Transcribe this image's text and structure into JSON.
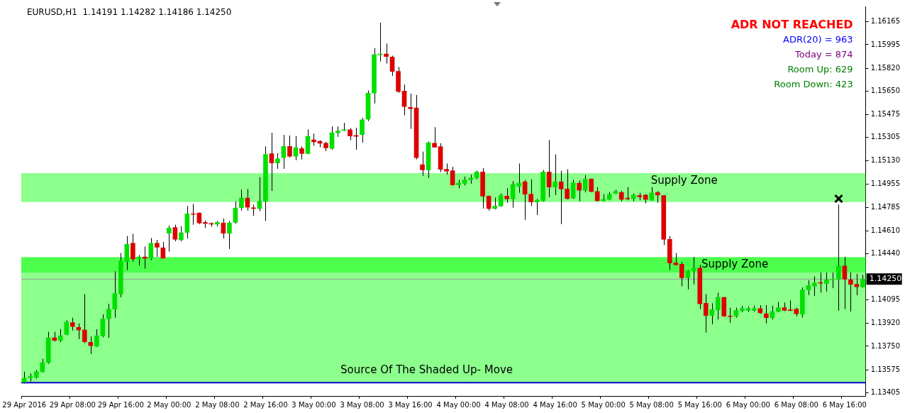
{
  "chart_data": {
    "type": "candlestick",
    "title": "EURUSD,H1  1.14191 1.14282 1.14186 1.14250",
    "annotations": [
      "ADR NOT REACHED",
      "ADR(20) = 963",
      "Today = 874",
      "Room Up: 629",
      "Room Down: 423"
    ],
    "categories": [
      "29 Apr 2016",
      null,
      null,
      null,
      null,
      null,
      null,
      null,
      "29 Apr 08:00",
      null,
      null,
      null,
      null,
      null,
      null,
      null,
      "29 Apr 16:00",
      null,
      null,
      null,
      null,
      null,
      null,
      null,
      "2 May 00:00",
      null,
      null,
      null,
      null,
      null,
      null,
      null,
      "2 May 08:00",
      null,
      null,
      null,
      null,
      null,
      null,
      null,
      "2 May 16:00",
      null,
      null,
      null,
      null,
      null,
      null,
      null,
      "3 May 00:00",
      null,
      null,
      null,
      null,
      null,
      null,
      null,
      "3 May 08:00",
      null,
      null,
      null,
      null,
      null,
      null,
      null,
      "3 May 16:00",
      null,
      null,
      null,
      null,
      null,
      null,
      null,
      "4 May 00:00",
      null,
      null,
      null,
      null,
      null,
      null,
      null,
      "4 May 08:00",
      null,
      null,
      null,
      null,
      null,
      null,
      null,
      "4 May 16:00",
      null,
      null,
      null,
      null,
      null,
      null,
      null,
      "5 May 00:00",
      null,
      null,
      null,
      null,
      null,
      null,
      null,
      "5 May 08:00",
      null,
      null,
      null,
      null,
      null,
      null,
      null,
      "5 May 16:00",
      null,
      null,
      null,
      null,
      null,
      null,
      null,
      "6 May 00:00",
      null,
      null,
      null,
      null,
      null,
      null,
      null,
      "6 May 08:00",
      null,
      null,
      null,
      null,
      null,
      null,
      null,
      "6 May 16:00",
      null,
      null,
      null
    ],
    "ohlc": [
      [
        1.13483,
        1.1356,
        1.13473,
        1.13512
      ],
      [
        1.13516,
        1.13547,
        1.13489,
        1.13527
      ],
      [
        1.13518,
        1.13574,
        1.13508,
        1.1356
      ],
      [
        1.1356,
        1.13657,
        1.13555,
        1.13628
      ],
      [
        1.13628,
        1.13857,
        1.13619,
        1.13813
      ],
      [
        1.13813,
        1.13857,
        1.13787,
        1.13793
      ],
      [
        1.13793,
        1.13877,
        1.1378,
        1.13828
      ],
      [
        1.13838,
        1.13944,
        1.13832,
        1.1393
      ],
      [
        1.13926,
        1.13963,
        1.13866,
        1.13897
      ],
      [
        1.13891,
        1.1392,
        1.13803,
        1.13871
      ],
      [
        1.13871,
        1.14138,
        1.13774,
        1.13784
      ],
      [
        1.1378,
        1.13823,
        1.13692,
        1.13754
      ],
      [
        1.1375,
        1.13877,
        1.13745,
        1.13828
      ],
      [
        1.13828,
        1.13988,
        1.13817,
        1.13953
      ],
      [
        1.13955,
        1.14066,
        1.13813,
        1.14027
      ],
      [
        1.14027,
        1.14308,
        1.13963,
        1.14143
      ],
      [
        1.14139,
        1.14444,
        1.14114,
        1.14386
      ],
      [
        1.1438,
        1.14571,
        1.14318,
        1.14509
      ],
      [
        1.14517,
        1.14587,
        1.1438,
        1.144
      ],
      [
        1.14402,
        1.14429,
        1.14351,
        1.14415
      ],
      [
        1.14415,
        1.14493,
        1.14328,
        1.14405
      ],
      [
        1.14405,
        1.14556,
        1.1439,
        1.14517
      ],
      [
        1.14517,
        1.14542,
        1.14415,
        1.14487
      ],
      [
        1.14483,
        1.14527,
        1.14405,
        1.14405
      ],
      [
        1.14591,
        1.14649,
        1.14454,
        1.1463
      ],
      [
        1.14634,
        1.14655,
        1.14532,
        1.14546
      ],
      [
        1.14542,
        1.14644,
        1.14532,
        1.14595
      ],
      [
        1.14597,
        1.14794,
        1.14552,
        1.14736
      ],
      [
        1.14736,
        1.1481,
        1.14655,
        1.14732
      ],
      [
        1.14742,
        1.14746,
        1.14659,
        1.14668
      ],
      [
        1.14672,
        1.14687,
        1.1463,
        1.14664
      ],
      [
        1.14664,
        1.14672,
        1.1464,
        1.14659
      ],
      [
        1.14659,
        1.14682,
        1.1464,
        1.14672
      ],
      [
        1.14668,
        1.14701,
        1.14552,
        1.14591
      ],
      [
        1.14591,
        1.14682,
        1.14474,
        1.14668
      ],
      [
        1.14672,
        1.14829,
        1.14662,
        1.14779
      ],
      [
        1.14781,
        1.14917,
        1.1476,
        1.14853
      ],
      [
        1.14853,
        1.14921,
        1.1476,
        1.14785
      ],
      [
        1.14781,
        1.14804,
        1.14721,
        1.14775
      ],
      [
        1.14775,
        1.15009,
        1.14756,
        1.14829
      ],
      [
        1.14829,
        1.15238,
        1.14682,
        1.15178
      ],
      [
        1.15184,
        1.15339,
        1.14906,
        1.15115
      ],
      [
        1.15115,
        1.15187,
        1.15071,
        1.15145
      ],
      [
        1.15154,
        1.15323,
        1.15071,
        1.15238
      ],
      [
        1.15238,
        1.15319,
        1.15154,
        1.15164
      ],
      [
        1.15164,
        1.15315,
        1.15135,
        1.15228
      ],
      [
        1.15222,
        1.15238,
        1.15141,
        1.15184
      ],
      [
        1.15184,
        1.15364,
        1.1518,
        1.15313
      ],
      [
        1.15286,
        1.15333,
        1.15242,
        1.15271
      ],
      [
        1.15276,
        1.15284,
        1.15232,
        1.15261
      ],
      [
        1.15261,
        1.15271,
        1.15203,
        1.15226
      ],
      [
        1.15222,
        1.15387,
        1.15213,
        1.15339
      ],
      [
        1.15339,
        1.15387,
        1.15309,
        1.15352
      ],
      [
        1.15356,
        1.15413,
        1.15352,
        1.15362
      ],
      [
        1.15362,
        1.15374,
        1.15284,
        1.15315
      ],
      [
        1.15319,
        1.15377,
        1.15213,
        1.15313
      ],
      [
        1.15325,
        1.1545,
        1.15265,
        1.15436
      ],
      [
        1.1544,
        1.15654,
        1.15426,
        1.15634
      ],
      [
        1.15634,
        1.1597,
        1.15557,
        1.15922
      ],
      [
        1.1592,
        1.16159,
        1.15869,
        1.15926
      ],
      [
        1.15926,
        1.16003,
        1.15854,
        1.15907
      ],
      [
        1.15903,
        1.15913,
        1.15763,
        1.15796
      ],
      [
        1.15796,
        1.15829,
        1.15636,
        1.15646
      ],
      [
        1.1565,
        1.15698,
        1.15469,
        1.15534
      ],
      [
        1.15528,
        1.15631,
        1.15368,
        1.15518
      ],
      [
        1.15524,
        1.15621,
        1.15141,
        1.15154
      ],
      [
        1.15102,
        1.15199,
        1.15019,
        1.15063
      ],
      [
        1.15061,
        1.15275,
        1.15003,
        1.15265
      ],
      [
        1.15261,
        1.15381,
        1.15228,
        1.15232
      ],
      [
        1.15236,
        1.15261,
        1.15047,
        1.15067
      ],
      [
        1.15067,
        1.1511,
        1.15028,
        1.15053
      ],
      [
        1.15057,
        1.15086,
        1.14947,
        1.14951
      ],
      [
        1.14951,
        1.14989,
        1.14927,
        1.14964
      ],
      [
        1.14962,
        1.15013,
        1.14947,
        1.14989
      ],
      [
        1.14989,
        1.15028,
        1.1496,
        1.15003
      ],
      [
        1.15003,
        1.15057,
        1.14993,
        1.15047
      ],
      [
        1.15047,
        1.15077,
        1.14775,
        1.14868
      ],
      [
        1.14868,
        1.14872,
        1.1476,
        1.14775
      ],
      [
        1.14775,
        1.14857,
        1.14769,
        1.14794
      ],
      [
        1.14794,
        1.14888,
        1.14788,
        1.14872
      ],
      [
        1.14868,
        1.14927,
        1.14818,
        1.14847
      ],
      [
        1.14847,
        1.1498,
        1.14781,
        1.14955
      ],
      [
        1.14941,
        1.1511,
        1.14892,
        1.14964
      ],
      [
        1.14974,
        1.14989,
        1.14691,
        1.14882
      ],
      [
        1.14882,
        1.14993,
        1.14794,
        1.14824
      ],
      [
        1.14824,
        1.14847,
        1.14727,
        1.14837
      ],
      [
        1.14833,
        1.15063,
        1.14827,
        1.15047
      ],
      [
        1.15047,
        1.15286,
        1.14859,
        1.14935
      ],
      [
        1.14935,
        1.15178,
        1.14876,
        1.14974
      ],
      [
        1.14974,
        1.15057,
        1.14659,
        1.14921
      ],
      [
        1.14921,
        1.15067,
        1.14843,
        1.14849
      ],
      [
        1.14853,
        1.14989,
        1.14847,
        1.14966
      ],
      [
        1.14964,
        1.14984,
        1.14829,
        1.14911
      ],
      [
        1.14911,
        1.15024,
        1.14895,
        1.14993
      ],
      [
        1.14995,
        1.14999,
        1.14895,
        1.14902
      ],
      [
        1.14902,
        1.14935,
        1.14829,
        1.14833
      ],
      [
        1.14833,
        1.14882,
        1.14827,
        1.14843
      ],
      [
        1.14843,
        1.14898,
        1.14837,
        1.14882
      ],
      [
        1.14888,
        1.14915,
        1.14882,
        1.14902
      ],
      [
        1.14895,
        1.14907,
        1.14829,
        1.14843
      ],
      [
        1.14853,
        1.14935,
        1.14837,
        1.14847
      ],
      [
        1.14849,
        1.14888,
        1.14829,
        1.14876
      ],
      [
        1.14872,
        1.14892,
        1.14837,
        1.14862
      ],
      [
        1.14876,
        1.14882,
        1.14814,
        1.14843
      ],
      [
        1.14837,
        1.14935,
        1.14833,
        1.14892
      ],
      [
        1.14895,
        1.14905,
        1.14818,
        1.14876
      ],
      [
        1.14872,
        1.14876,
        1.14503,
        1.14546
      ],
      [
        1.14546,
        1.14571,
        1.14318,
        1.1437
      ],
      [
        1.1437,
        1.14444,
        1.14351,
        1.14357
      ],
      [
        1.14361,
        1.14376,
        1.14196,
        1.1426
      ],
      [
        1.1426,
        1.14318,
        1.14173,
        1.14312
      ],
      [
        1.14312,
        1.14415,
        1.14211,
        1.14332
      ],
      [
        1.14332,
        1.14357,
        1.14027,
        1.14066
      ],
      [
        1.1407,
        1.14138,
        1.13852,
        1.13979
      ],
      [
        1.13979,
        1.1407,
        1.13914,
        1.14023
      ],
      [
        1.14021,
        1.14149,
        1.13949,
        1.14114
      ],
      [
        1.14114,
        1.14118,
        1.13969,
        1.13975
      ],
      [
        1.13975,
        1.14037,
        1.13924,
        1.13971
      ],
      [
        1.13975,
        1.14037,
        1.13963,
        1.14017
      ],
      [
        1.14014,
        1.1405,
        1.14004,
        1.14031
      ],
      [
        1.14017,
        1.14047,
        1.14004,
        1.14031
      ],
      [
        1.14017,
        1.14052,
        1.14008,
        1.14031
      ],
      [
        1.14031,
        1.14056,
        1.13992,
        1.13998
      ],
      [
        1.13992,
        1.14056,
        1.1392,
        1.13963
      ],
      [
        1.13963,
        1.14052,
        1.13949,
        1.14008
      ],
      [
        1.14008,
        1.1408,
        1.14004,
        1.14037
      ],
      [
        1.14037,
        1.14076,
        1.14012,
        1.14017
      ],
      [
        1.14021,
        1.14091,
        1.14012,
        1.14016
      ],
      [
        1.14027,
        1.14037,
        1.13973,
        1.13992
      ],
      [
        1.13988,
        1.14188,
        1.13963,
        1.14169
      ],
      [
        1.14169,
        1.14241,
        1.1413,
        1.14202
      ],
      [
        1.14198,
        1.1427,
        1.14124,
        1.14221
      ],
      [
        1.14225,
        1.14299,
        1.14149,
        1.14219
      ],
      [
        1.14217,
        1.14299,
        1.14157,
        1.14245
      ],
      [
        1.14245,
        1.14299,
        1.14182,
        1.1425
      ],
      [
        1.1425,
        1.14804,
        1.14014,
        1.14347
      ],
      [
        1.14347,
        1.14415,
        1.14027,
        1.1425
      ],
      [
        1.14245,
        1.14299,
        1.14008,
        1.14211
      ],
      [
        1.14211,
        1.14289,
        1.1413,
        1.14192
      ],
      [
        1.14191,
        1.14282,
        1.14186,
        1.1425
      ]
    ],
    "colors": [
      "#00e000",
      "#00e000",
      "#00e000",
      "#00e000",
      "#00e000",
      "#dd0000",
      "#00e000",
      "#00e000",
      "#dd0000",
      "#dd0000",
      "#dd0000",
      "#dd0000",
      "#00e000",
      "#00e000",
      "#00e000",
      "#00e000",
      "#00e000",
      "#00e000",
      "#dd0000",
      "#00e000",
      "#dd0000",
      "#00e000",
      "#dd0000",
      "#dd0000",
      "#00e000",
      "#dd0000",
      "#00e000",
      "#00e000",
      "#dd0000",
      "#dd0000",
      "#dd0000",
      "#dd0000",
      "#00e000",
      "#dd0000",
      "#00e000",
      "#00e000",
      "#00e000",
      "#dd0000",
      "#dd0000",
      "#00e000",
      "#00e000",
      "#dd0000",
      "#00e000",
      "#00e000",
      "#dd0000",
      "#00e000",
      "#dd0000",
      "#00e000",
      "#dd0000",
      "#dd0000",
      "#dd0000",
      "#00e000",
      "#00e000",
      "#00e000",
      "#dd0000",
      "#dd0000",
      "#00e000",
      "#00e000",
      "#00e000",
      "#00e000",
      "#dd0000",
      "#dd0000",
      "#dd0000",
      "#dd0000",
      "#dd0000",
      "#dd0000",
      "#dd0000",
      "#00e000",
      "#dd0000",
      "#dd0000",
      "#dd0000",
      "#dd0000",
      "#00e000",
      "#00e000",
      "#00e000",
      "#00e000",
      "#dd0000",
      "#dd0000",
      "#00e000",
      "#00e000",
      "#dd0000",
      "#00e000",
      "#00e000",
      "#dd0000",
      "#dd0000",
      "#00e000",
      "#00e000",
      "#dd0000",
      "#00e000",
      "#dd0000",
      "#dd0000",
      "#00e000",
      "#dd0000",
      "#00e000",
      "#dd0000",
      "#dd0000",
      "#00e000",
      "#00e000",
      "#00e000",
      "#dd0000",
      "#dd0000",
      "#00e000",
      "#dd0000",
      "#dd0000",
      "#00e000",
      "#dd0000",
      "#dd0000",
      "#dd0000",
      "#dd0000",
      "#dd0000",
      "#00e000",
      "#00e000",
      "#dd0000",
      "#dd0000",
      "#00e000",
      "#00e000",
      "#dd0000",
      "#dd0000",
      "#00e000",
      "#00e000",
      "#00e000",
      "#00e000",
      "#dd0000",
      "#dd0000",
      "#00e000",
      "#00e000",
      "#dd0000",
      "#dd0000",
      "#dd0000",
      "#00e000",
      "#00e000",
      "#00e000",
      "#dd0000",
      "#00e000",
      "#00e000",
      "#00e000",
      "#dd0000",
      "#dd0000",
      "#dd0000",
      "#00e000"
    ],
    "ylim": [
      1.1338,
      1.1628
    ],
    "yticks": [
      1.16165,
      1.15995,
      {
        "value": 1.1582,
        "label": "1.15820"
      },
      {
        "value": 1.1565,
        "label": "1.15650"
      },
      1.15475,
      1.15305,
      {
        "value": 1.1513,
        "label": "1.15130"
      },
      1.14955,
      1.14785,
      {
        "value": 1.1461,
        "label": "1.14610"
      },
      {
        "value": 1.1444,
        "label": "1.14440"
      },
      1.14095,
      {
        "value": 1.1392,
        "label": "1.13920"
      },
      {
        "value": 1.1375,
        "label": "1.13750"
      },
      1.13575,
      1.13405
    ],
    "bands": [
      {
        "axis": "y",
        "from": 1.13482,
        "to": 1.1441,
        "color": "#00ff00"
      },
      {
        "axis": "y",
        "from": 1.14824,
        "to": 1.15038,
        "label": "Supply Zone",
        "color": "#00ff00"
      },
      {
        "axis": "y",
        "from": 1.14299,
        "to": 1.14415,
        "label": "Supply Zone",
        "color": "#00ff00"
      }
    ],
    "ref_lines": [
      {
        "axis": "y",
        "value": 1.1425,
        "label": "1.14250",
        "color": "#999999"
      },
      {
        "axis": "y",
        "value": 1.13479,
        "label": "Source Of The Shaded Up- Move",
        "color": "#0000cc"
      }
    ],
    "grid": false,
    "legend": false
  }
}
